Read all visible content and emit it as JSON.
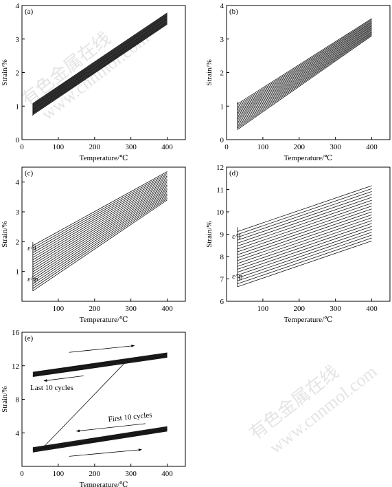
{
  "watermark": {
    "line1": "有色金属在线",
    "line2": "www.cnnmol.com"
  },
  "chart_data": [
    {
      "type": "line",
      "panel": "(a)",
      "xlabel": "Temperature/℃",
      "ylabel": "Strain/%",
      "xlim": [
        0,
        450
      ],
      "ylim": [
        0,
        4
      ],
      "xticks": [
        "0",
        "100",
        "200",
        "300",
        "400"
      ],
      "yticks": [
        "0",
        "1",
        "2",
        "3",
        "4"
      ],
      "series": [
        {
          "x": [
            30,
            400
          ],
          "y_start": [
            1.08,
            3.78
          ],
          "y_step": [
            -0.02,
            -0.02
          ],
          "count": 18
        }
      ]
    },
    {
      "type": "line",
      "panel": "(b)",
      "xlabel": "Temperature/℃",
      "ylabel": "Strain/%",
      "xlim": [
        0,
        450
      ],
      "ylim": [
        0,
        4
      ],
      "xticks": [
        "0",
        "100",
        "200",
        "300",
        "400"
      ],
      "yticks": [
        "0",
        "1",
        "2",
        "3",
        "4"
      ],
      "series": [
        {
          "x": [
            30,
            400
          ],
          "y_start": [
            0.3,
            3.1
          ],
          "y_step": [
            0.045,
            0.03
          ],
          "count": 18
        }
      ]
    },
    {
      "type": "line",
      "panel": "(c)",
      "xlabel": "Temperature/℃",
      "ylabel": "Strain/%",
      "xlim": [
        0,
        450
      ],
      "ylim": [
        0,
        4.5
      ],
      "xticks": [
        "100",
        "200",
        "300",
        "400"
      ],
      "yticks": [
        "1",
        "2",
        "3",
        "4"
      ],
      "annotations": [
        "ε^l",
        "ε^p"
      ],
      "series": [
        {
          "x": [
            30,
            400
          ],
          "y_start": [
            0.35,
            3.4
          ],
          "y_step": [
            0.08,
            0.05
          ],
          "count": 20
        }
      ]
    },
    {
      "type": "line",
      "panel": "(d)",
      "xlabel": "Temperature/℃",
      "ylabel": "Strain/%",
      "xlim": [
        0,
        450
      ],
      "ylim": [
        6,
        12
      ],
      "xticks": [
        "100",
        "200",
        "300",
        "400"
      ],
      "yticks": [
        "6",
        "7",
        "8",
        "9",
        "10",
        "11",
        "12"
      ],
      "annotations": [
        "ε^l",
        "ε^p"
      ],
      "series": [
        {
          "x": [
            30,
            400
          ],
          "y_start": [
            6.65,
            8.7
          ],
          "y_step": [
            0.13,
            0.13
          ],
          "count": 20
        }
      ]
    },
    {
      "type": "line",
      "panel": "(e)",
      "xlabel": "Temperature/℃",
      "ylabel": "Strain/%",
      "xlim": [
        0,
        450
      ],
      "ylim": [
        0,
        16
      ],
      "xticks": [
        "0",
        "100",
        "200",
        "300",
        "400"
      ],
      "yticks": [
        "4",
        "8",
        "12",
        "16"
      ],
      "annotations": [
        "Last 10 cycles",
        "First 10 cycles"
      ],
      "series": [
        {
          "name": "",
          "x": [
            30,
            400
          ],
          "y": [
            2.0,
            4.5
          ]
        },
        {
          "name": "",
          "x": [
            30,
            400
          ],
          "y": [
            11.0,
            13.3
          ]
        },
        {
          "name": "",
          "x": [
            55,
            280
          ],
          "y": [
            2.1,
            12.2
          ]
        }
      ]
    }
  ]
}
